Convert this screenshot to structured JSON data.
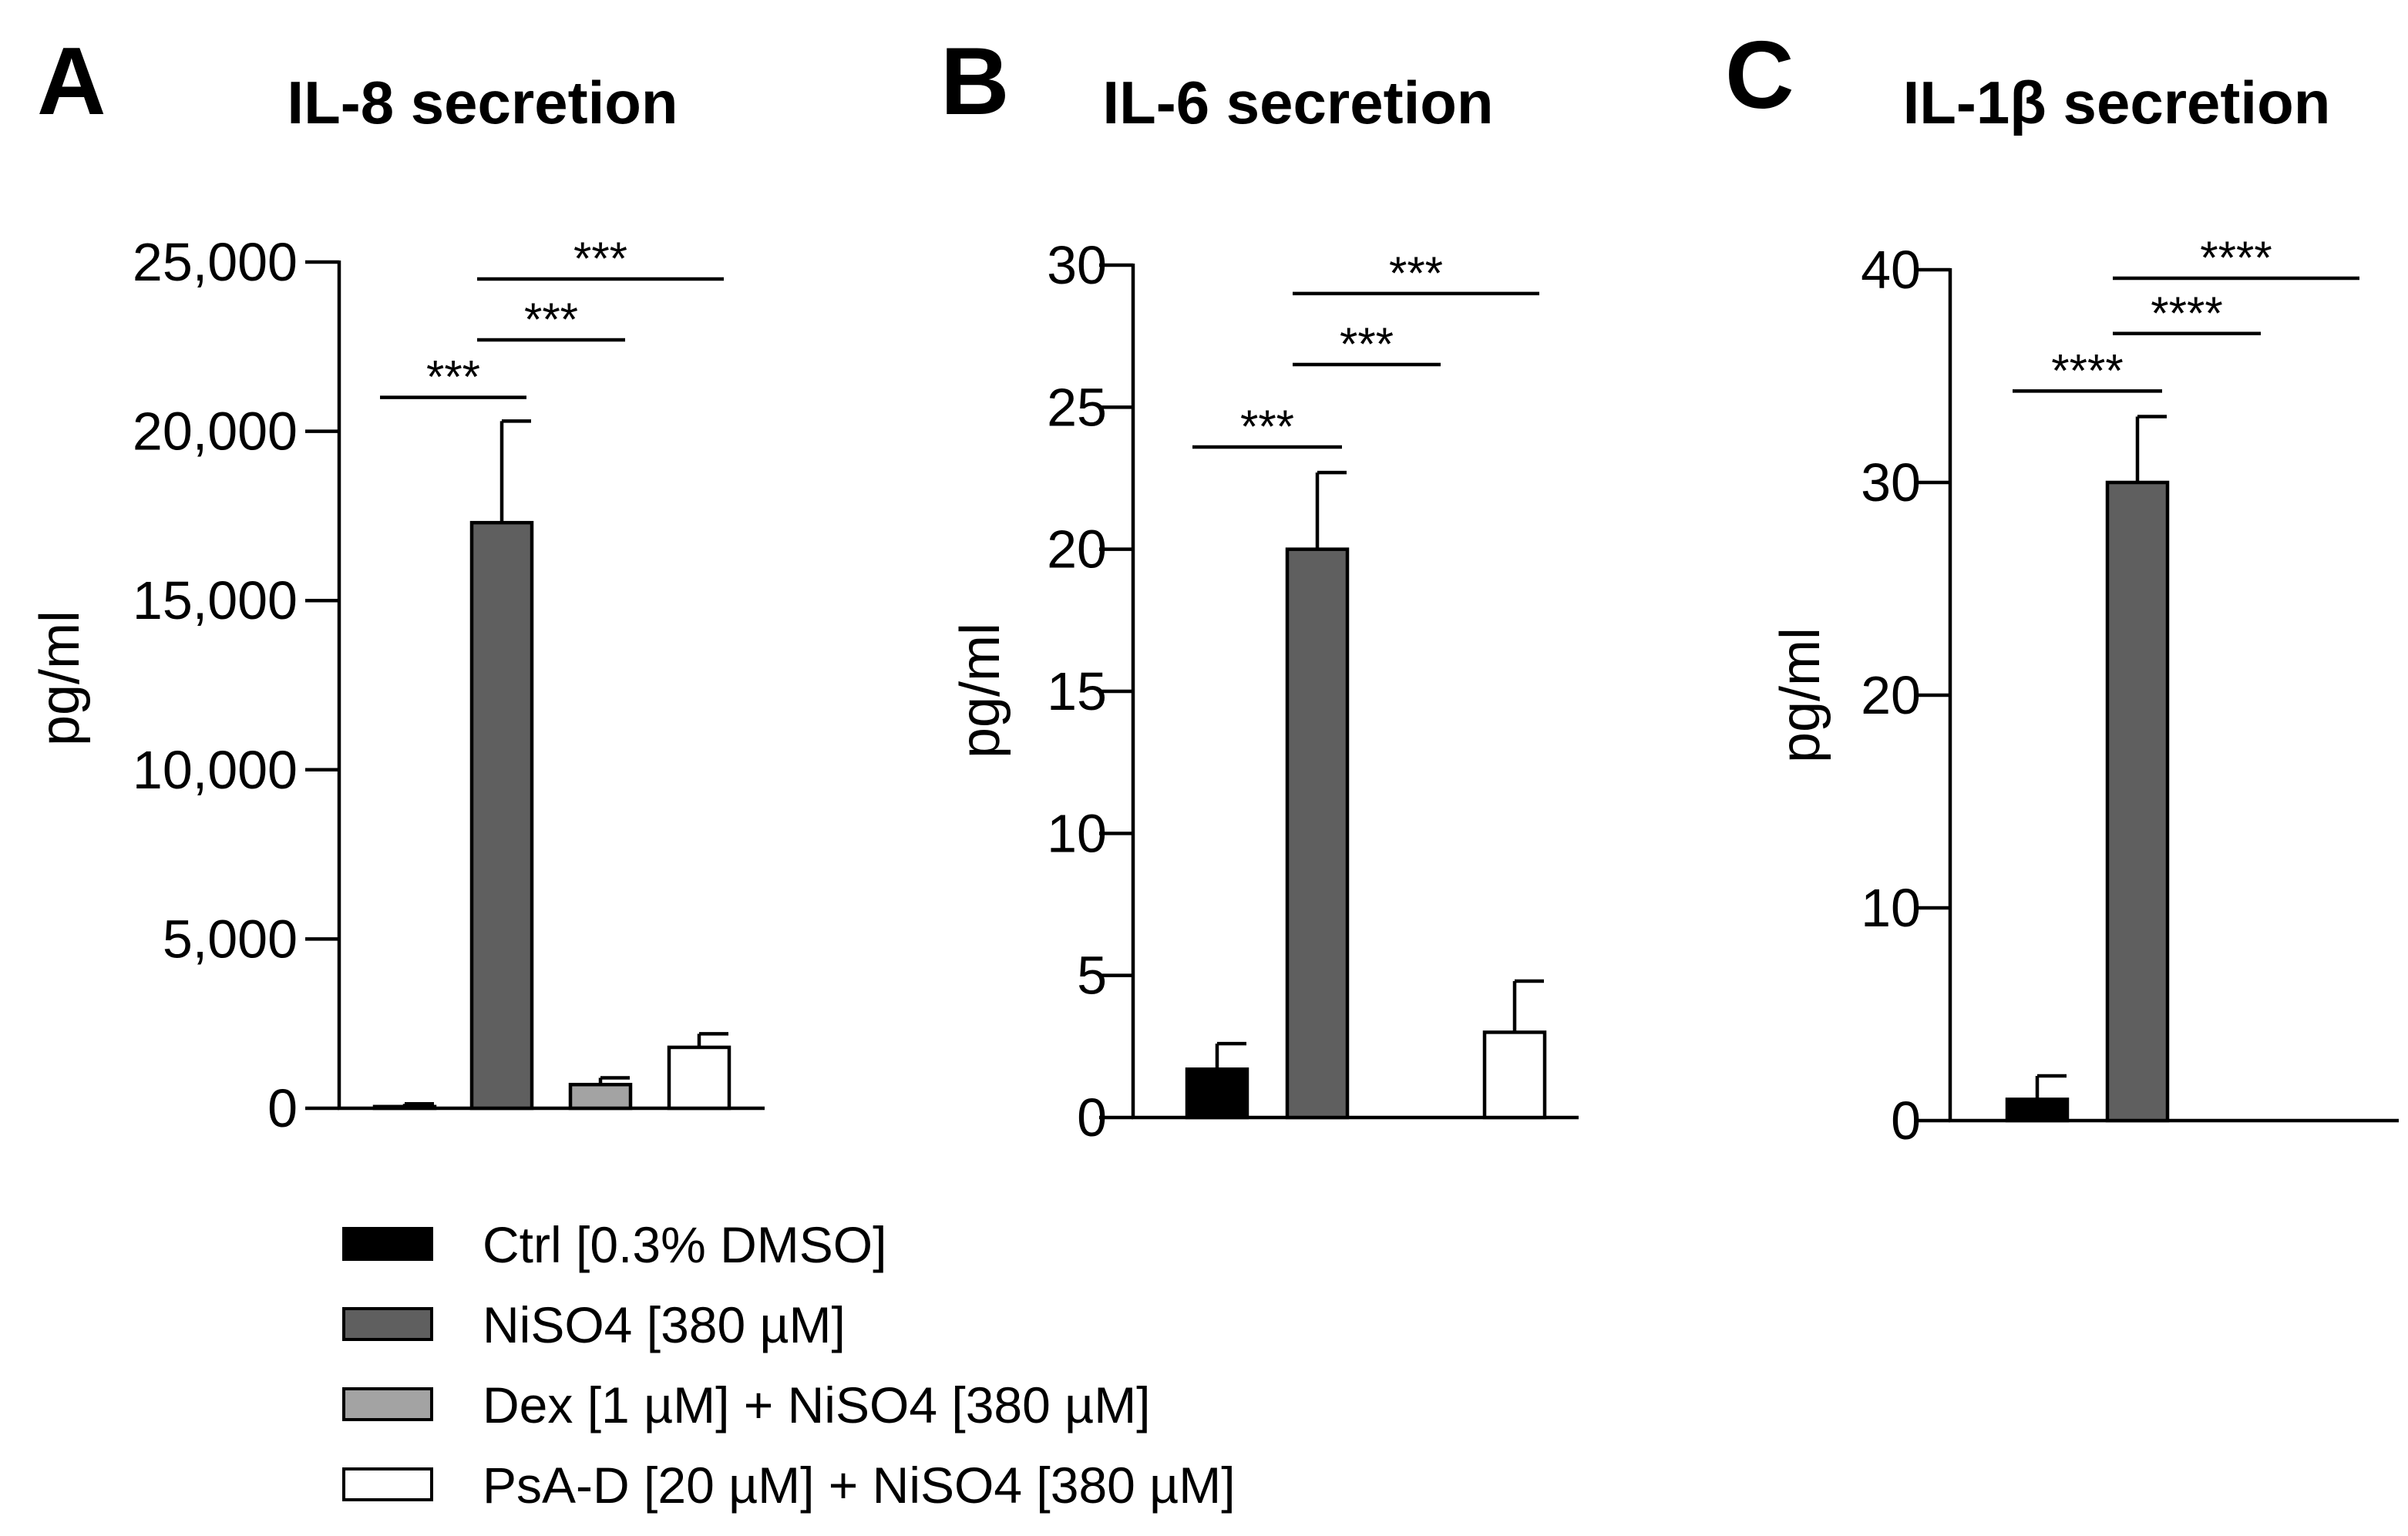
{
  "legend": [
    {
      "label": "Ctrl [0.3% DMSO]",
      "color": "#000000"
    },
    {
      "label": "NiSO4 [380 µM]",
      "color": "#5f5f5f"
    },
    {
      "label": "Dex [1 µM] + NiSO4 [380 µM]",
      "color": "#a3a3a3"
    },
    {
      "label": "PsA-D [20 µM] + NiSO4 [380 µM]",
      "color": "#ffffff"
    }
  ],
  "chart_data": [
    {
      "type": "bar",
      "panel": "A",
      "title": "IL-8 secretion",
      "ylabel": "pg/ml",
      "ylim": [
        0,
        25000
      ],
      "yticks": [
        0,
        5000,
        10000,
        15000,
        20000,
        25000
      ],
      "ytick_labels": [
        "0",
        "5,000",
        "10,000",
        "15,000",
        "20,000",
        "25,000"
      ],
      "categories": [
        "Ctrl [0.3% DMSO]",
        "NiSO4 [380 µM]",
        "Dex [1 µM] + NiSO4 [380 µM]",
        "PsA-D [20 µM] + NiSO4 [380 µM]"
      ],
      "values": [
        50,
        17300,
        700,
        1800
      ],
      "errors": [
        80,
        3000,
        200,
        400
      ],
      "significance": [
        {
          "from": 0,
          "to": 1,
          "label": "***",
          "level": 21000
        },
        {
          "from": 1,
          "to": 2,
          "label": "***",
          "level": 22700
        },
        {
          "from": 1,
          "to": 3,
          "label": "***",
          "level": 24500
        }
      ]
    },
    {
      "type": "bar",
      "panel": "B",
      "title": "IL-6 secretion",
      "ylabel": "pg/ml",
      "ylim": [
        0,
        30
      ],
      "yticks": [
        0,
        5,
        10,
        15,
        20,
        25,
        30
      ],
      "ytick_labels": [
        "0",
        "5",
        "10",
        "15",
        "20",
        "25",
        "30"
      ],
      "categories": [
        "Ctrl [0.3% DMSO]",
        "NiSO4 [380 µM]",
        "Dex [1 µM] + NiSO4 [380 µM]",
        "PsA-D [20 µM] + NiSO4 [380 µM]"
      ],
      "values": [
        1.7,
        20.0,
        0,
        3.0
      ],
      "errors": [
        0.9,
        2.7,
        0,
        1.8
      ],
      "significance": [
        {
          "from": 0,
          "to": 1,
          "label": "***",
          "level": 23.6
        },
        {
          "from": 1,
          "to": 2,
          "label": "***",
          "level": 26.5
        },
        {
          "from": 1,
          "to": 3,
          "label": "***",
          "level": 29.0
        }
      ]
    },
    {
      "type": "bar",
      "panel": "C",
      "title": "IL-1β secretion",
      "ylabel": "pg/ml",
      "ylim": [
        0,
        40
      ],
      "yticks": [
        0,
        10,
        20,
        30,
        40
      ],
      "ytick_labels": [
        "0",
        "10",
        "20",
        "30",
        "40"
      ],
      "categories": [
        "Ctrl [0.3% DMSO]",
        "NiSO4 [380 µM]",
        "Dex [1 µM] + NiSO4 [380 µM]",
        "PsA-D [20 µM] + NiSO4 [380 µM]"
      ],
      "values": [
        1.0,
        30.0,
        0,
        0
      ],
      "errors": [
        1.1,
        3.1,
        0,
        0
      ],
      "significance": [
        {
          "from": 0,
          "to": 1,
          "label": "****",
          "level": 34.3
        },
        {
          "from": 1,
          "to": 2,
          "label": "****",
          "level": 37.0
        },
        {
          "from": 1,
          "to": 3,
          "label": "****",
          "level": 39.6
        }
      ]
    }
  ]
}
